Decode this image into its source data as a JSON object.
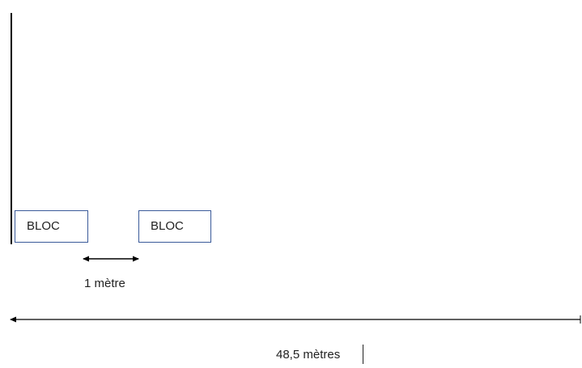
{
  "blocks": [
    {
      "label": "BLOC"
    },
    {
      "label": "BLOC"
    }
  ],
  "gap_dimension": {
    "label": "1 mètre"
  },
  "total_dimension": {
    "label": "48,5 mètres"
  },
  "colors": {
    "block_border": "#3a5a99",
    "line": "#000000",
    "text": "#222222"
  }
}
